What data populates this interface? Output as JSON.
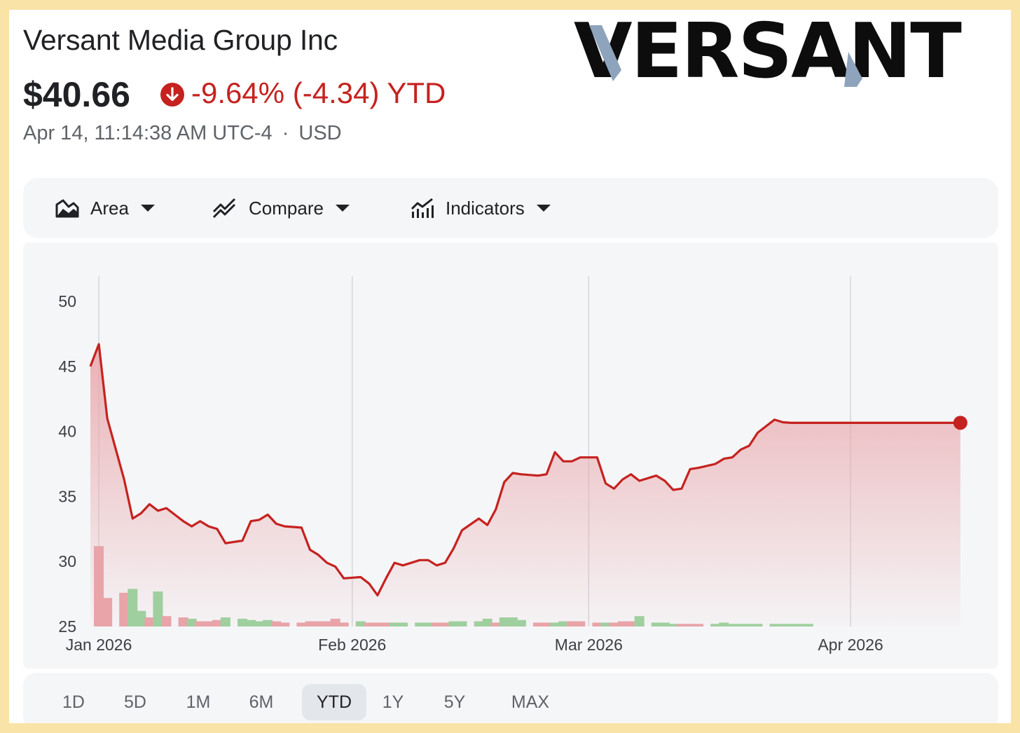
{
  "header": {
    "company": "Versant Media Group Inc",
    "price": "$40.66",
    "change": "-9.64% (-4.34) YTD",
    "timestamp": "Apr 14, 11:14:38 AM UTC-4",
    "separator": "·",
    "currency": "USD"
  },
  "logo": {
    "text": "VERSANT"
  },
  "toolbar": {
    "area_label": "Area",
    "compare_label": "Compare",
    "indicators_label": "Indicators"
  },
  "ranges": [
    "1D",
    "5D",
    "1M",
    "6M",
    "YTD",
    "1Y",
    "5Y",
    "MAX"
  ],
  "active_range": "YTD",
  "colors": {
    "line": "#c5221f",
    "fill": "#e8a4a8",
    "volume_down": "#e8a4a8",
    "volume_up": "#9fcf9f",
    "logo_accent": "#8ea3bc"
  },
  "icons": {
    "change": "arrow-down-circle-icon",
    "area": "area-chart-icon",
    "compare": "compare-icon",
    "indicators": "indicators-icon",
    "dropdown": "caret-down-icon"
  },
  "chart_data": {
    "type": "area",
    "title": "",
    "xlabel": "",
    "ylabel": "",
    "ylim": [
      25,
      50
    ],
    "yticks": [
      25,
      30,
      35,
      40,
      45,
      50
    ],
    "x_ticks": [
      {
        "date": "2026-01-02",
        "label": "Jan 2026"
      },
      {
        "date": "2026-02-01",
        "label": "Feb 2026"
      },
      {
        "date": "2026-03-01",
        "label": "Mar 2026"
      },
      {
        "date": "2026-04-01",
        "label": "Apr 2026"
      }
    ],
    "grid": "vertical",
    "x_start": "2026-01-01",
    "x_end": "2026-04-16",
    "series": [
      {
        "x": [
          "2026-01-01",
          "2026-01-02",
          "2026-01-03",
          "2026-01-05",
          "2026-01-06",
          "2026-01-07",
          "2026-01-08",
          "2026-01-09",
          "2026-01-10",
          "2026-01-12",
          "2026-01-13",
          "2026-01-14",
          "2026-01-15",
          "2026-01-16",
          "2026-01-17",
          "2026-01-19",
          "2026-01-20",
          "2026-01-21",
          "2026-01-22",
          "2026-01-23",
          "2026-01-24",
          "2026-01-26",
          "2026-01-27",
          "2026-01-28",
          "2026-01-29",
          "2026-01-30",
          "2026-01-31",
          "2026-02-02",
          "2026-02-03",
          "2026-02-04",
          "2026-02-05",
          "2026-02-06",
          "2026-02-07",
          "2026-02-09",
          "2026-02-10",
          "2026-02-11",
          "2026-02-12",
          "2026-02-13",
          "2026-02-14",
          "2026-02-16",
          "2026-02-17",
          "2026-02-18",
          "2026-02-19",
          "2026-02-20",
          "2026-02-21",
          "2026-02-23",
          "2026-02-24",
          "2026-02-25",
          "2026-02-26",
          "2026-02-27",
          "2026-02-28",
          "2026-03-02",
          "2026-03-03",
          "2026-03-04",
          "2026-03-05",
          "2026-03-06",
          "2026-03-07",
          "2026-03-09",
          "2026-03-10",
          "2026-03-11",
          "2026-03-12",
          "2026-03-13",
          "2026-03-14",
          "2026-03-16",
          "2026-03-17",
          "2026-03-18",
          "2026-03-19",
          "2026-03-20",
          "2026-03-21",
          "2026-03-23",
          "2026-03-24",
          "2026-03-25",
          "2026-03-26",
          "2026-03-27",
          "2026-03-28",
          "2026-03-30",
          "2026-03-31",
          "2026-04-01",
          "2026-04-02",
          "2026-04-03",
          "2026-04-04",
          "2026-04-06",
          "2026-04-07",
          "2026-04-08",
          "2026-04-09",
          "2026-04-10",
          "2026-04-11",
          "2026-04-13",
          "2026-04-14"
        ],
        "y": [
          45.0,
          46.7,
          41.0,
          36.3,
          33.3,
          33.7,
          34.4,
          33.9,
          34.1,
          33.1,
          32.7,
          33.1,
          32.7,
          32.5,
          31.4,
          31.6,
          33.1,
          33.2,
          33.6,
          32.9,
          32.7,
          32.6,
          30.9,
          30.5,
          29.9,
          29.6,
          28.7,
          28.8,
          28.3,
          27.4,
          28.7,
          29.9,
          29.7,
          30.1,
          30.1,
          29.7,
          29.9,
          31.0,
          32.4,
          33.3,
          32.8,
          34.0,
          36.1,
          36.8,
          36.7,
          36.6,
          36.7,
          38.4,
          37.7,
          37.7,
          38.0,
          38.0,
          36.0,
          35.6,
          36.3,
          36.7,
          36.2,
          36.6,
          36.2,
          35.5,
          35.6,
          37.1,
          37.2,
          37.5,
          37.9,
          38.0,
          38.6,
          38.9,
          39.9,
          40.9,
          40.7,
          40.66,
          40.66,
          40.66,
          40.66,
          40.66,
          40.66,
          40.66,
          40.66,
          40.66,
          40.66,
          40.66,
          40.66,
          40.66,
          40.66,
          40.66,
          40.66,
          40.66,
          40.66
        ]
      }
    ],
    "volume": [
      {
        "date": "2026-01-02",
        "value": 31,
        "dir": "down"
      },
      {
        "date": "2026-01-03",
        "value": 11,
        "dir": "down"
      },
      {
        "date": "2026-01-05",
        "value": 13,
        "dir": "down"
      },
      {
        "date": "2026-01-06",
        "value": 14.5,
        "dir": "up"
      },
      {
        "date": "2026-01-07",
        "value": 6,
        "dir": "up"
      },
      {
        "date": "2026-01-08",
        "value": 3.5,
        "dir": "down"
      },
      {
        "date": "2026-01-09",
        "value": 13.5,
        "dir": "up"
      },
      {
        "date": "2026-01-10",
        "value": 4,
        "dir": "down"
      },
      {
        "date": "2026-01-12",
        "value": 3.5,
        "dir": "down"
      },
      {
        "date": "2026-01-13",
        "value": 3,
        "dir": "up"
      },
      {
        "date": "2026-01-14",
        "value": 2,
        "dir": "down"
      },
      {
        "date": "2026-01-15",
        "value": 2,
        "dir": "down"
      },
      {
        "date": "2026-01-16",
        "value": 2.5,
        "dir": "down"
      },
      {
        "date": "2026-01-17",
        "value": 3.5,
        "dir": "up"
      },
      {
        "date": "2026-01-19",
        "value": 3,
        "dir": "up"
      },
      {
        "date": "2026-01-20",
        "value": 2.5,
        "dir": "up"
      },
      {
        "date": "2026-01-21",
        "value": 2,
        "dir": "up"
      },
      {
        "date": "2026-01-22",
        "value": 2.5,
        "dir": "up"
      },
      {
        "date": "2026-01-23",
        "value": 2,
        "dir": "down"
      },
      {
        "date": "2026-01-24",
        "value": 1.5,
        "dir": "down"
      },
      {
        "date": "2026-01-26",
        "value": 1.5,
        "dir": "down"
      },
      {
        "date": "2026-01-27",
        "value": 2,
        "dir": "down"
      },
      {
        "date": "2026-01-28",
        "value": 2,
        "dir": "down"
      },
      {
        "date": "2026-01-29",
        "value": 2,
        "dir": "down"
      },
      {
        "date": "2026-01-30",
        "value": 3,
        "dir": "down"
      },
      {
        "date": "2026-01-31",
        "value": 1.5,
        "dir": "down"
      },
      {
        "date": "2026-02-02",
        "value": 2,
        "dir": "up"
      },
      {
        "date": "2026-02-03",
        "value": 1.5,
        "dir": "down"
      },
      {
        "date": "2026-02-04",
        "value": 1.5,
        "dir": "down"
      },
      {
        "date": "2026-02-05",
        "value": 1.5,
        "dir": "down"
      },
      {
        "date": "2026-02-06",
        "value": 1.5,
        "dir": "up"
      },
      {
        "date": "2026-02-07",
        "value": 1.5,
        "dir": "up"
      },
      {
        "date": "2026-02-09",
        "value": 1.5,
        "dir": "up"
      },
      {
        "date": "2026-02-10",
        "value": 1.5,
        "dir": "up"
      },
      {
        "date": "2026-02-11",
        "value": 1.5,
        "dir": "down"
      },
      {
        "date": "2026-02-12",
        "value": 1.5,
        "dir": "down"
      },
      {
        "date": "2026-02-13",
        "value": 2,
        "dir": "up"
      },
      {
        "date": "2026-02-14",
        "value": 2,
        "dir": "up"
      },
      {
        "date": "2026-02-16",
        "value": 2,
        "dir": "up"
      },
      {
        "date": "2026-02-17",
        "value": 3,
        "dir": "up"
      },
      {
        "date": "2026-02-18",
        "value": 1.5,
        "dir": "down"
      },
      {
        "date": "2026-02-19",
        "value": 3.5,
        "dir": "up"
      },
      {
        "date": "2026-02-20",
        "value": 3.5,
        "dir": "up"
      },
      {
        "date": "2026-02-21",
        "value": 2.5,
        "dir": "up"
      },
      {
        "date": "2026-02-23",
        "value": 1.5,
        "dir": "down"
      },
      {
        "date": "2026-02-24",
        "value": 1.5,
        "dir": "down"
      },
      {
        "date": "2026-02-25",
        "value": 1.5,
        "dir": "up"
      },
      {
        "date": "2026-02-26",
        "value": 2,
        "dir": "up"
      },
      {
        "date": "2026-02-27",
        "value": 2,
        "dir": "down"
      },
      {
        "date": "2026-02-28",
        "value": 2,
        "dir": "down"
      },
      {
        "date": "2026-03-02",
        "value": 1.5,
        "dir": "down"
      },
      {
        "date": "2026-03-03",
        "value": 1.5,
        "dir": "up"
      },
      {
        "date": "2026-03-04",
        "value": 1.5,
        "dir": "down"
      },
      {
        "date": "2026-03-05",
        "value": 2,
        "dir": "down"
      },
      {
        "date": "2026-03-06",
        "value": 2,
        "dir": "down"
      },
      {
        "date": "2026-03-07",
        "value": 4,
        "dir": "up"
      },
      {
        "date": "2026-03-09",
        "value": 1.5,
        "dir": "up"
      },
      {
        "date": "2026-03-10",
        "value": 1.5,
        "dir": "up"
      },
      {
        "date": "2026-03-11",
        "value": 1,
        "dir": "up"
      },
      {
        "date": "2026-03-12",
        "value": 1,
        "dir": "down"
      },
      {
        "date": "2026-03-13",
        "value": 1,
        "dir": "down"
      },
      {
        "date": "2026-03-14",
        "value": 1,
        "dir": "down"
      },
      {
        "date": "2026-03-16",
        "value": 1,
        "dir": "up"
      },
      {
        "date": "2026-03-17",
        "value": 1.5,
        "dir": "up"
      },
      {
        "date": "2026-03-18",
        "value": 1,
        "dir": "up"
      },
      {
        "date": "2026-03-19",
        "value": 1,
        "dir": "up"
      },
      {
        "date": "2026-03-20",
        "value": 1,
        "dir": "up"
      },
      {
        "date": "2026-03-21",
        "value": 1,
        "dir": "up"
      },
      {
        "date": "2026-03-23",
        "value": 1,
        "dir": "up"
      },
      {
        "date": "2026-03-24",
        "value": 1,
        "dir": "up"
      },
      {
        "date": "2026-03-25",
        "value": 1,
        "dir": "up"
      },
      {
        "date": "2026-03-26",
        "value": 1,
        "dir": "up"
      },
      {
        "date": "2026-03-27",
        "value": 1,
        "dir": "up"
      }
    ],
    "last_point": {
      "date": "2026-04-14",
      "value": 40.66
    }
  }
}
